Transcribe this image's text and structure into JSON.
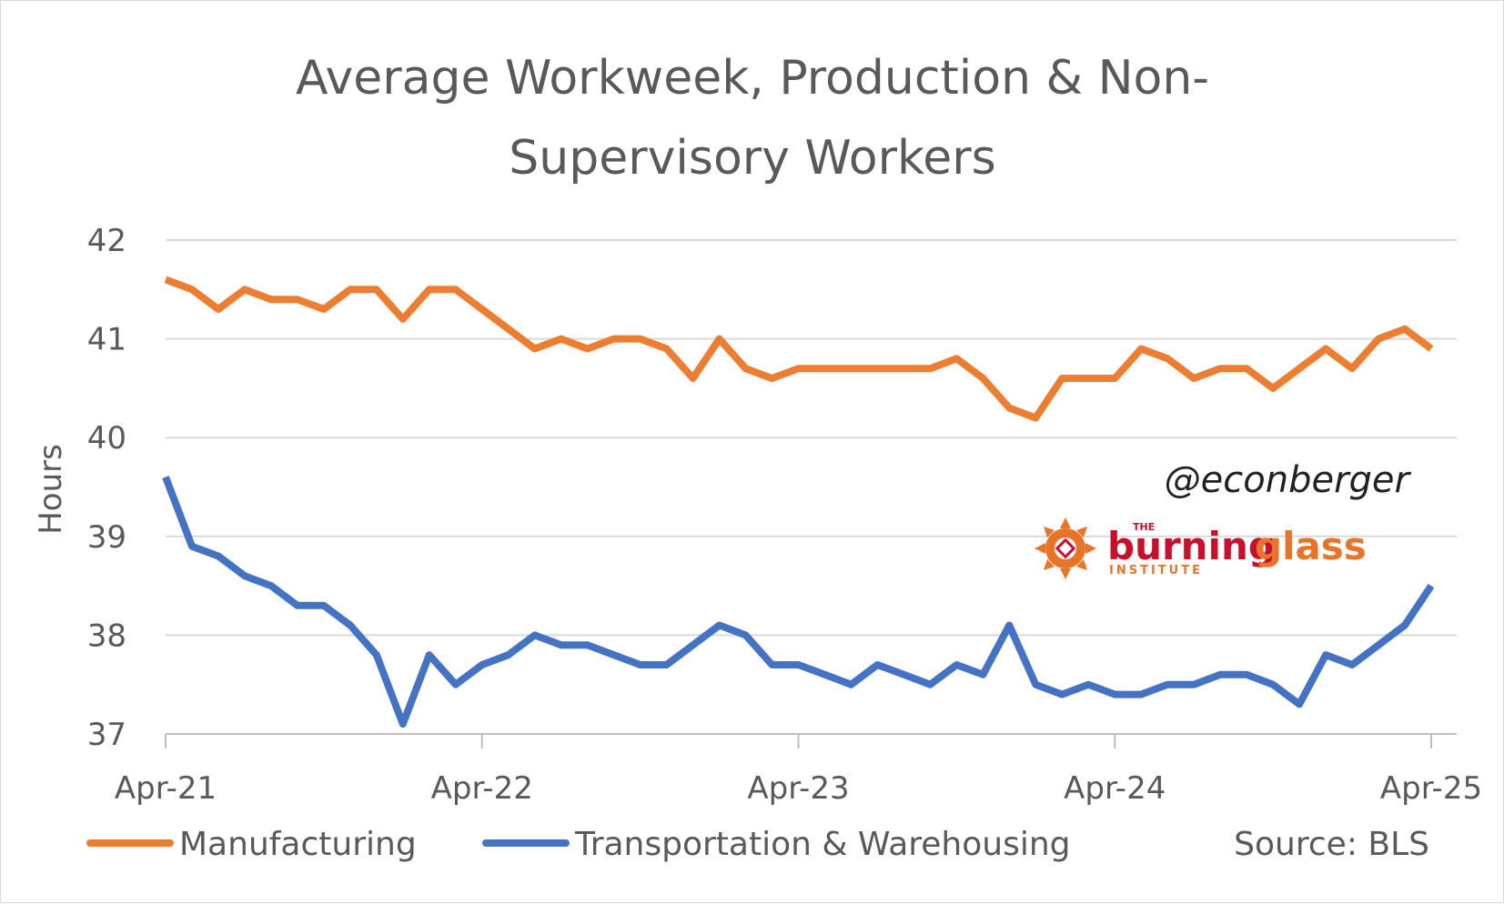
{
  "chart_data": {
    "type": "line",
    "title_lines": [
      "Average Workweek, Production & Non-",
      "Supervisory Workers"
    ],
    "xlabel": "",
    "ylabel": "Hours",
    "ylim": [
      37,
      42
    ],
    "yticks": [
      "37",
      "38",
      "39",
      "40",
      "41",
      "42"
    ],
    "x_tick_labels": [
      "Apr-21",
      "Apr-22",
      "Apr-23",
      "Apr-24",
      "Apr-25"
    ],
    "x_tick_months_index": [
      0,
      12,
      24,
      36,
      48
    ],
    "x_start": "2021-04",
    "x_end": "2025-04",
    "grid": true,
    "legend_position": "bottom",
    "series": [
      {
        "name": "Manufacturing",
        "color": "#ED7D31",
        "values": [
          41.6,
          41.5,
          41.3,
          41.5,
          41.4,
          41.4,
          41.3,
          41.5,
          41.5,
          41.2,
          41.5,
          41.5,
          41.3,
          41.1,
          40.9,
          41.0,
          40.9,
          41.0,
          41.0,
          40.9,
          40.6,
          41.0,
          40.7,
          40.6,
          40.7,
          40.7,
          40.7,
          40.7,
          40.7,
          40.7,
          40.8,
          40.6,
          40.3,
          40.2,
          40.6,
          40.6,
          40.6,
          40.9,
          40.8,
          40.6,
          40.7,
          40.7,
          40.5,
          40.7,
          40.9,
          40.7,
          41.0,
          41.1,
          40.9
        ]
      },
      {
        "name": "Transportation & Warehousing",
        "color": "#4472C4",
        "values": [
          39.6,
          38.9,
          38.8,
          38.6,
          38.5,
          38.3,
          38.3,
          38.1,
          37.8,
          37.1,
          37.8,
          37.5,
          37.7,
          37.8,
          38.0,
          37.9,
          37.9,
          37.8,
          37.7,
          37.7,
          37.9,
          38.1,
          38.0,
          37.7,
          37.7,
          37.6,
          37.5,
          37.7,
          37.6,
          37.5,
          37.7,
          37.6,
          38.1,
          37.5,
          37.4,
          37.5,
          37.4,
          37.4,
          37.5,
          37.5,
          37.6,
          37.6,
          37.5,
          37.3,
          37.8,
          37.7,
          37.9,
          38.1,
          38.5
        ]
      }
    ],
    "annotations": {
      "source": "Source: BLS",
      "handle": "@econberger"
    },
    "logo": {
      "top_small": "THE",
      "word1": "burning",
      "word2": "glass",
      "bottom_small": "INSTITUTE",
      "color_red": "#C8102E",
      "color_orange": "#E8742A"
    },
    "colors": {
      "text": "#595959",
      "grid": "#d9d9d9",
      "axis": "#bfbfbf"
    }
  }
}
